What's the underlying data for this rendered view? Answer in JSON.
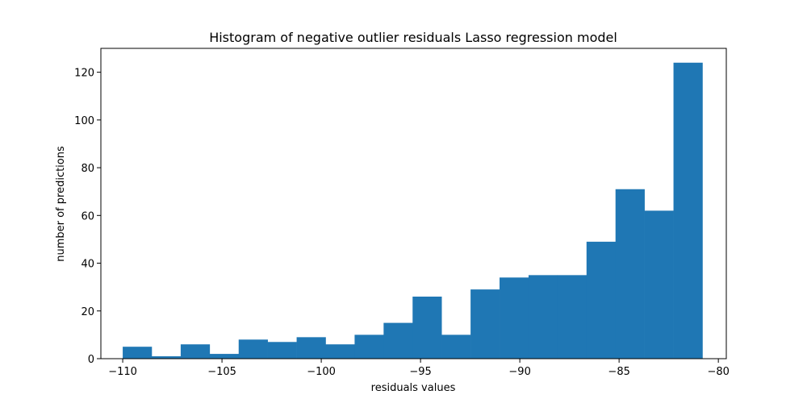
{
  "chart_data": {
    "type": "bar",
    "title": "Histogram of negative outlier residuals Lasso regression model",
    "xlabel": "residuals values",
    "ylabel": "number of predictions",
    "xlim": [
      -111.1,
      -79.6
    ],
    "ylim": [
      0,
      130
    ],
    "xticks": [
      -110,
      -105,
      -100,
      -95,
      -90,
      -85,
      -80
    ],
    "xtick_labels": [
      "−110",
      "−105",
      "−100",
      "−95",
      "−90",
      "−85",
      "−80"
    ],
    "yticks": [
      0,
      20,
      40,
      60,
      80,
      100,
      120
    ],
    "ytick_labels": [
      "0",
      "20",
      "40",
      "60",
      "80",
      "100",
      "120"
    ],
    "bins": {
      "start": -110.0,
      "end": -80.8,
      "counts": [
        5,
        1,
        6,
        2,
        8,
        7,
        9,
        6,
        10,
        15,
        26,
        10,
        29,
        34,
        35,
        35,
        49,
        71,
        62,
        124
      ]
    },
    "bar_color": "#1f77b4",
    "grid": false,
    "legend": "none"
  }
}
